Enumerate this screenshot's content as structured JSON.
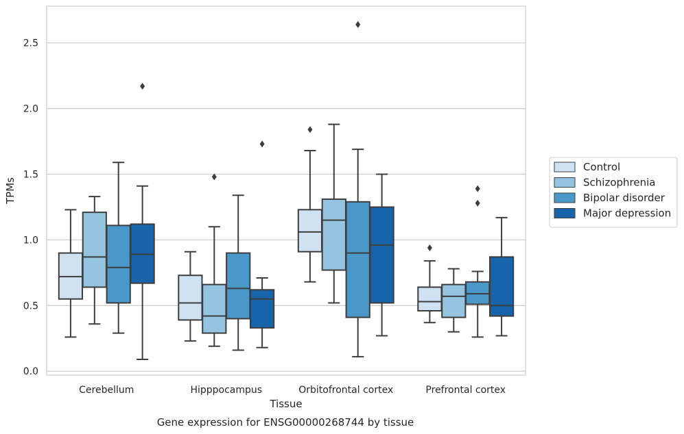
{
  "chart_data": {
    "type": "box",
    "ylabel": "TPMs",
    "xlabel": "Tissue",
    "caption": "Gene expression for ENSG00000268744 by tissue",
    "ylim": [
      -0.03,
      2.78
    ],
    "yticks": [
      0.0,
      0.5,
      1.0,
      1.5,
      2.0,
      2.5
    ],
    "ytick_labels": [
      "0.0",
      "0.5",
      "1.0",
      "1.5",
      "2.0",
      "2.5"
    ],
    "grid": "horizontal",
    "legend_position": "right",
    "categories": [
      "Cerebellum",
      "Hipppocampus",
      "Orbitofrontal cortex",
      "Prefrontal cortex"
    ],
    "series": [
      {
        "name": "Control",
        "color": "#d0e1f2",
        "boxes": [
          {
            "whislo": 0.26,
            "q1": 0.55,
            "med": 0.72,
            "q3": 0.9,
            "whishi": 1.23,
            "fliers": []
          },
          {
            "whislo": 0.23,
            "q1": 0.39,
            "med": 0.52,
            "q3": 0.73,
            "whishi": 0.91,
            "fliers": []
          },
          {
            "whislo": 0.68,
            "q1": 0.91,
            "med": 1.06,
            "q3": 1.23,
            "whishi": 1.68,
            "fliers": [
              1.84
            ]
          },
          {
            "whislo": 0.37,
            "q1": 0.46,
            "med": 0.53,
            "q3": 0.64,
            "whishi": 0.84,
            "fliers": [
              0.94
            ]
          }
        ]
      },
      {
        "name": "Schizophrenia",
        "color": "#94c4df",
        "boxes": [
          {
            "whislo": 0.36,
            "q1": 0.64,
            "med": 0.87,
            "q3": 1.21,
            "whishi": 1.33,
            "fliers": []
          },
          {
            "whislo": 0.19,
            "q1": 0.29,
            "med": 0.42,
            "q3": 0.66,
            "whishi": 1.1,
            "fliers": [
              1.48
            ]
          },
          {
            "whislo": 0.52,
            "q1": 0.77,
            "med": 1.15,
            "q3": 1.31,
            "whishi": 1.88,
            "fliers": []
          },
          {
            "whislo": 0.3,
            "q1": 0.41,
            "med": 0.57,
            "q3": 0.66,
            "whishi": 0.78,
            "fliers": []
          }
        ]
      },
      {
        "name": "Bipolar disorder",
        "color": "#4a98c9",
        "boxes": [
          {
            "whislo": 0.29,
            "q1": 0.52,
            "med": 0.79,
            "q3": 1.11,
            "whishi": 1.59,
            "fliers": []
          },
          {
            "whislo": 0.16,
            "q1": 0.4,
            "med": 0.63,
            "q3": 0.9,
            "whishi": 1.34,
            "fliers": []
          },
          {
            "whislo": 0.11,
            "q1": 0.41,
            "med": 0.9,
            "q3": 1.29,
            "whishi": 1.69,
            "fliers": [
              2.64
            ]
          },
          {
            "whislo": 0.26,
            "q1": 0.51,
            "med": 0.59,
            "q3": 0.68,
            "whishi": 0.76,
            "fliers": [
              1.28,
              1.39
            ]
          }
        ]
      },
      {
        "name": "Major depression",
        "color": "#1764ab",
        "boxes": [
          {
            "whislo": 0.09,
            "q1": 0.67,
            "med": 0.89,
            "q3": 1.12,
            "whishi": 1.41,
            "fliers": [
              2.17
            ]
          },
          {
            "whislo": 0.18,
            "q1": 0.33,
            "med": 0.55,
            "q3": 0.62,
            "whishi": 0.71,
            "fliers": [
              1.73
            ]
          },
          {
            "whislo": 0.27,
            "q1": 0.52,
            "med": 0.96,
            "q3": 1.25,
            "whishi": 1.5,
            "fliers": []
          },
          {
            "whislo": 0.27,
            "q1": 0.42,
            "med": 0.5,
            "q3": 0.87,
            "whishi": 1.17,
            "fliers": []
          }
        ]
      }
    ]
  }
}
